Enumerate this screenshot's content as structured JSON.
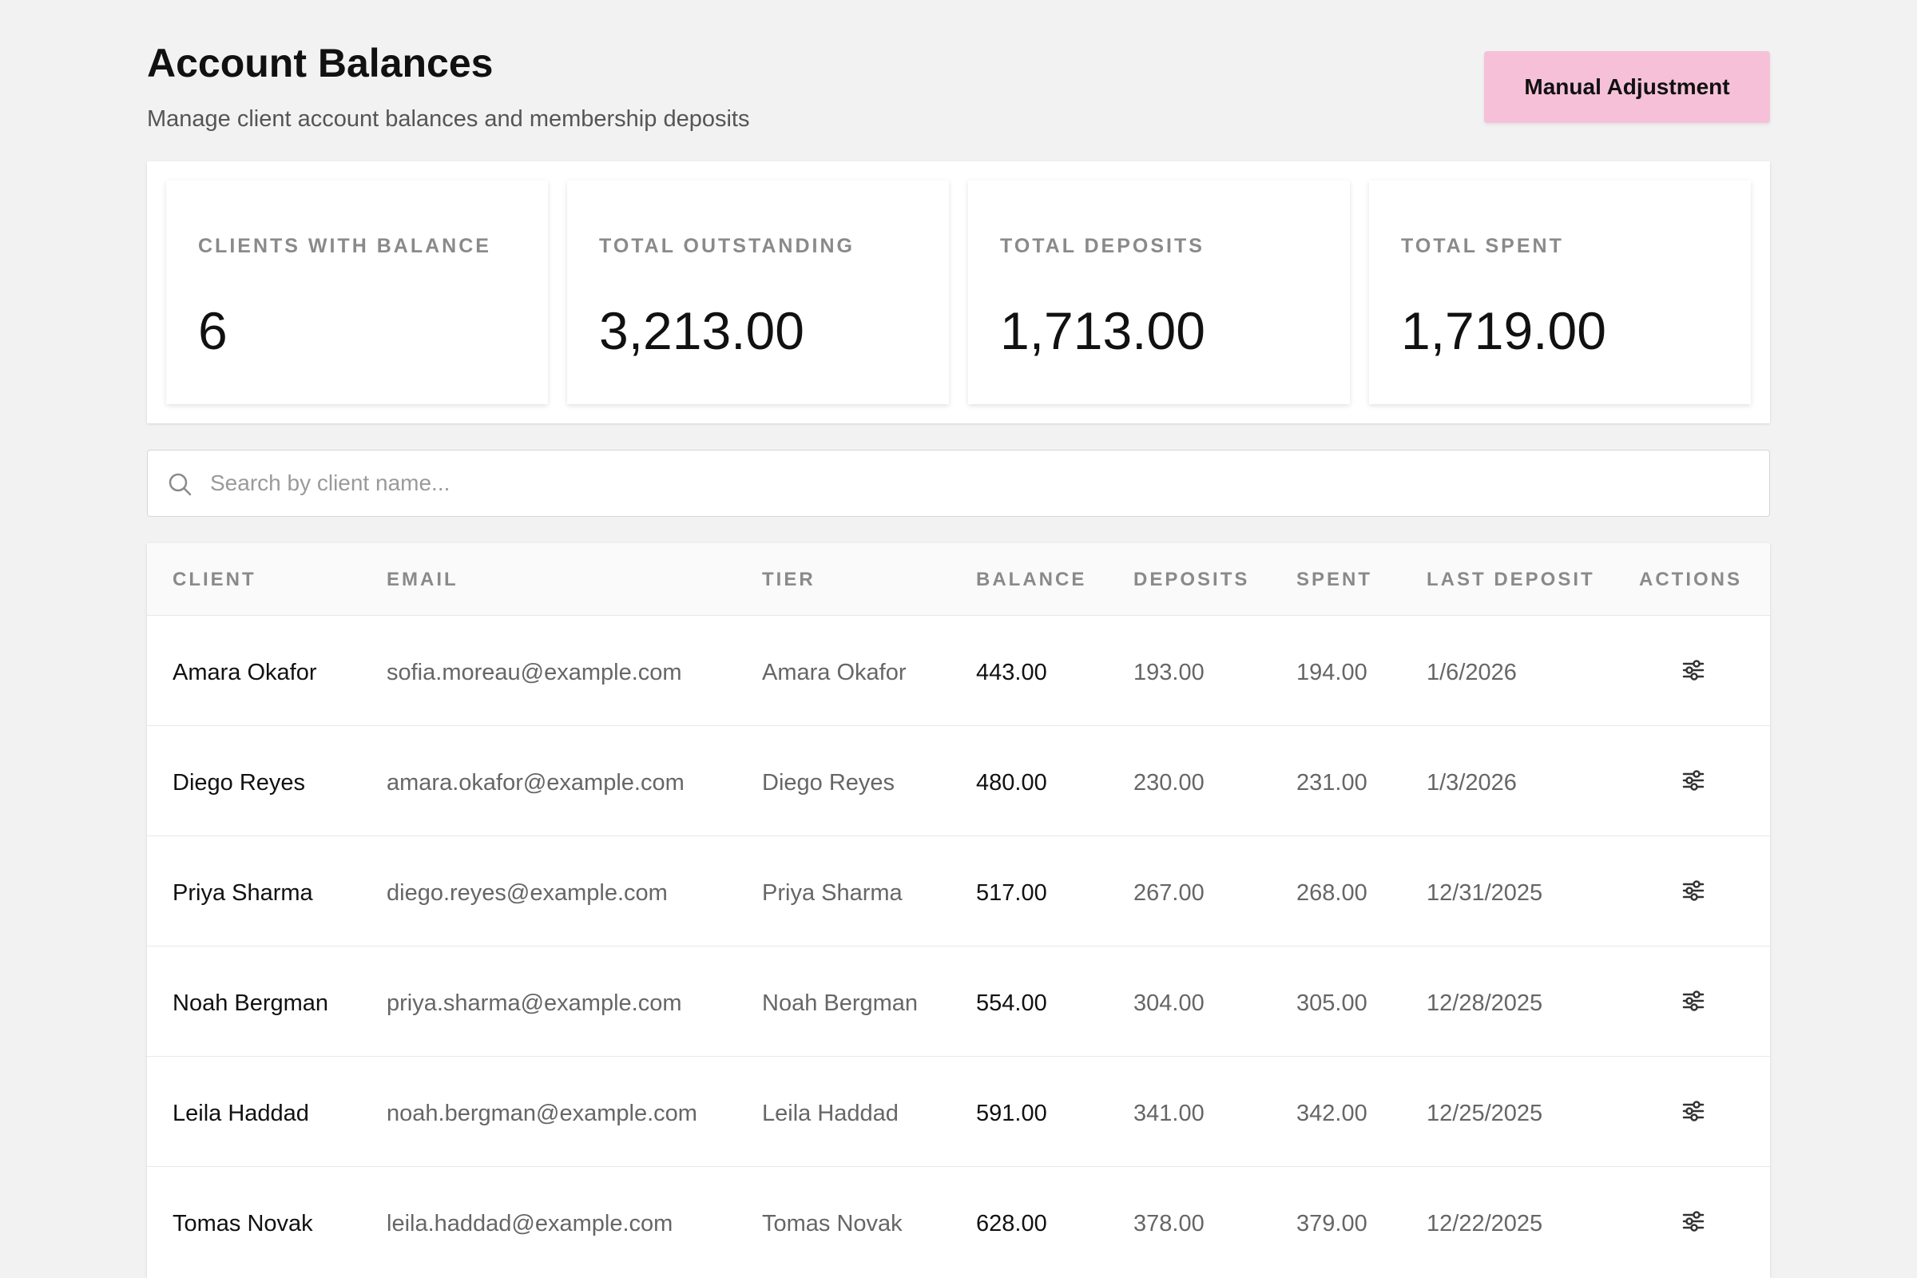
{
  "header": {
    "title": "Account Balances",
    "subtitle": "Manage client account balances and membership deposits",
    "action_label": "Manual Adjustment"
  },
  "stats": [
    {
      "label": "CLIENTS WITH BALANCE",
      "value": "6"
    },
    {
      "label": "TOTAL OUTSTANDING",
      "value": "3,213.00"
    },
    {
      "label": "TOTAL DEPOSITS",
      "value": "1,713.00"
    },
    {
      "label": "TOTAL SPENT",
      "value": "1,719.00"
    }
  ],
  "search": {
    "placeholder": "Search by client name...",
    "icon": "search-icon"
  },
  "table": {
    "columns": [
      "CLIENT",
      "EMAIL",
      "TIER",
      "BALANCE",
      "DEPOSITS",
      "SPENT",
      "LAST DEPOSIT",
      "ACTIONS"
    ],
    "rows": [
      {
        "client": "Amara Okafor",
        "email": "sofia.moreau@example.com",
        "tier": "Amara Okafor",
        "balance": "443.00",
        "deposits": "193.00",
        "spent": "194.00",
        "last_deposit": "1/6/2026"
      },
      {
        "client": "Diego Reyes",
        "email": "amara.okafor@example.com",
        "tier": "Diego Reyes",
        "balance": "480.00",
        "deposits": "230.00",
        "spent": "231.00",
        "last_deposit": "1/3/2026"
      },
      {
        "client": "Priya Sharma",
        "email": "diego.reyes@example.com",
        "tier": "Priya Sharma",
        "balance": "517.00",
        "deposits": "267.00",
        "spent": "268.00",
        "last_deposit": "12/31/2025"
      },
      {
        "client": "Noah Bergman",
        "email": "priya.sharma@example.com",
        "tier": "Noah Bergman",
        "balance": "554.00",
        "deposits": "304.00",
        "spent": "305.00",
        "last_deposit": "12/28/2025"
      },
      {
        "client": "Leila Haddad",
        "email": "noah.bergman@example.com",
        "tier": "Leila Haddad",
        "balance": "591.00",
        "deposits": "341.00",
        "spent": "342.00",
        "last_deposit": "12/25/2025"
      },
      {
        "client": "Tomas Novak",
        "email": "leila.haddad@example.com",
        "tier": "Tomas Novak",
        "balance": "628.00",
        "deposits": "378.00",
        "spent": "379.00",
        "last_deposit": "12/22/2025"
      }
    ],
    "action_icon": "sliders-icon"
  },
  "colors": {
    "accent": "#f6c1d8",
    "background": "#f2f2f2",
    "muted_text": "#8a8a8a"
  }
}
